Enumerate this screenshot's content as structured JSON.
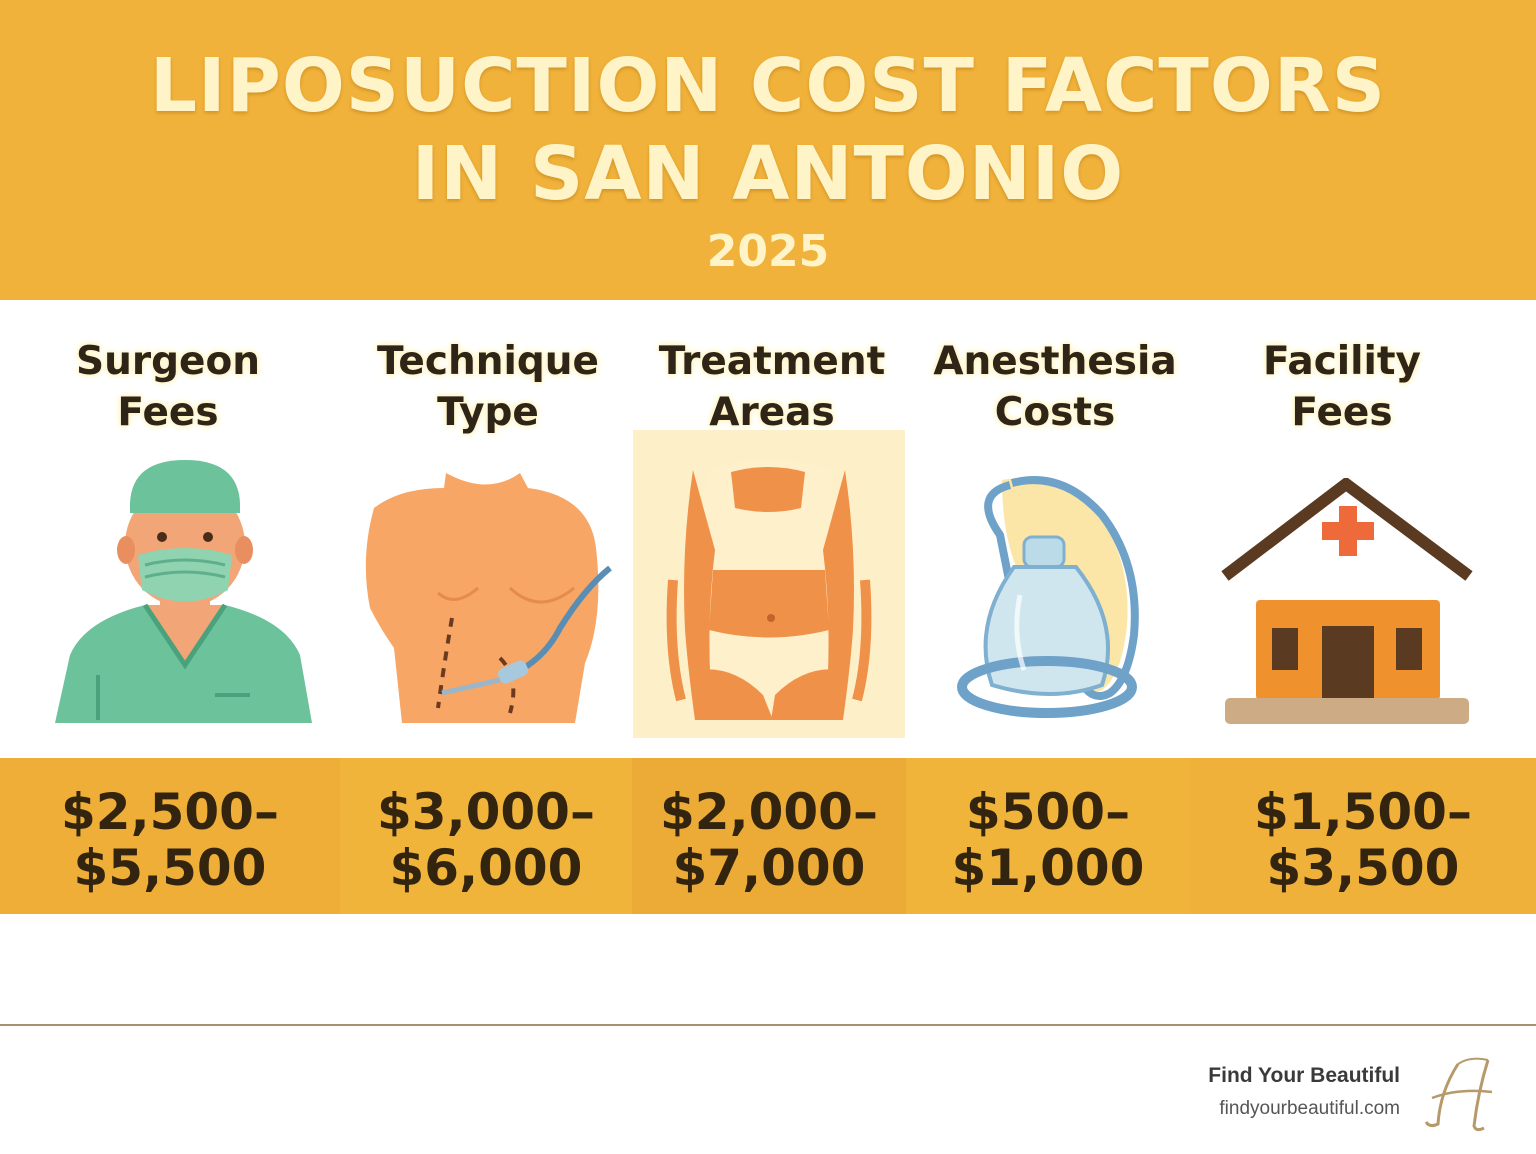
{
  "header": {
    "title_line1": "LIPOSUCTION COST FACTORS",
    "title_line2": "IN SAN ANTONIO",
    "year": "2025"
  },
  "factors": [
    {
      "label_line1": "Surgeon",
      "label_line2": "Fees",
      "icon": "surgeon-icon",
      "price_line1": "$2,500–",
      "price_line2": "$5,500"
    },
    {
      "label_line1": "Technique",
      "label_line2": "Type",
      "icon": "torso-cannula-icon",
      "price_line1": "$3,000–",
      "price_line2": "$6,000"
    },
    {
      "label_line1": "Treatment",
      "label_line2": "Areas",
      "icon": "body-areas-icon",
      "price_line1": "$2,000–",
      "price_line2": "$7,000"
    },
    {
      "label_line1": "Anesthesia",
      "label_line2": "Costs",
      "icon": "anesthesia-mask-icon",
      "price_line1": "$500–",
      "price_line2": "$1,000"
    },
    {
      "label_line1": "Facility",
      "label_line2": "Fees",
      "icon": "clinic-building-icon",
      "price_line1": "$1,500–",
      "price_line2": "$3,500"
    }
  ],
  "footer": {
    "brand_name": "Find Your Beautiful",
    "brand_url": "findyourbeautiful.com",
    "logo_icon": "script-h-logo-icon"
  },
  "colors": {
    "header_bg": "#f0b23a",
    "title_text": "#fff4c7",
    "price_band": "#f1b43a",
    "label_text": "#2e2417"
  }
}
